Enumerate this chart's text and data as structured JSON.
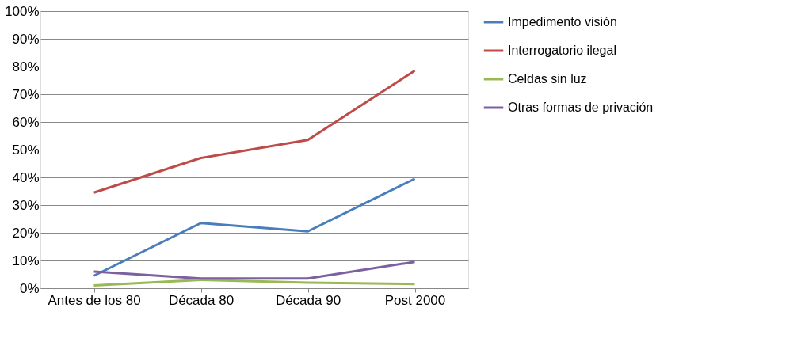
{
  "chart_data": {
    "type": "line",
    "categories": [
      "Antes de los 80",
      "Década 80",
      "Década 90",
      "Post 2000"
    ],
    "series": [
      {
        "name": "Impedimento visión",
        "color": "#4a7ebb",
        "values": [
          4.5,
          23.5,
          20.5,
          39.5
        ]
      },
      {
        "name": "Interrogatorio ilegal",
        "color": "#be4b48",
        "values": [
          34.5,
          47,
          53.5,
          78.5
        ]
      },
      {
        "name": "Celdas sin luz",
        "color": "#98b954",
        "values": [
          1,
          3,
          2,
          1.5
        ]
      },
      {
        "name": "Otras formas de privación",
        "color": "#7d60a0",
        "values": [
          6,
          3.5,
          3.5,
          9.5
        ]
      }
    ],
    "ylim": [
      0,
      100
    ],
    "yticks": [
      {
        "value": 0,
        "label": "0%"
      },
      {
        "value": 10,
        "label": "10%"
      },
      {
        "value": 20,
        "label": "20%"
      },
      {
        "value": 30,
        "label": "30%"
      },
      {
        "value": 40,
        "label": "40%"
      },
      {
        "value": 50,
        "label": "50%"
      },
      {
        "value": 60,
        "label": "60%"
      },
      {
        "value": 70,
        "label": "70%"
      },
      {
        "value": 80,
        "label": "80%"
      },
      {
        "value": 90,
        "label": "90%"
      },
      {
        "value": 100,
        "label": "100%"
      }
    ],
    "grid": "y",
    "legend": "right",
    "marker": "none",
    "line_style": "solid"
  }
}
